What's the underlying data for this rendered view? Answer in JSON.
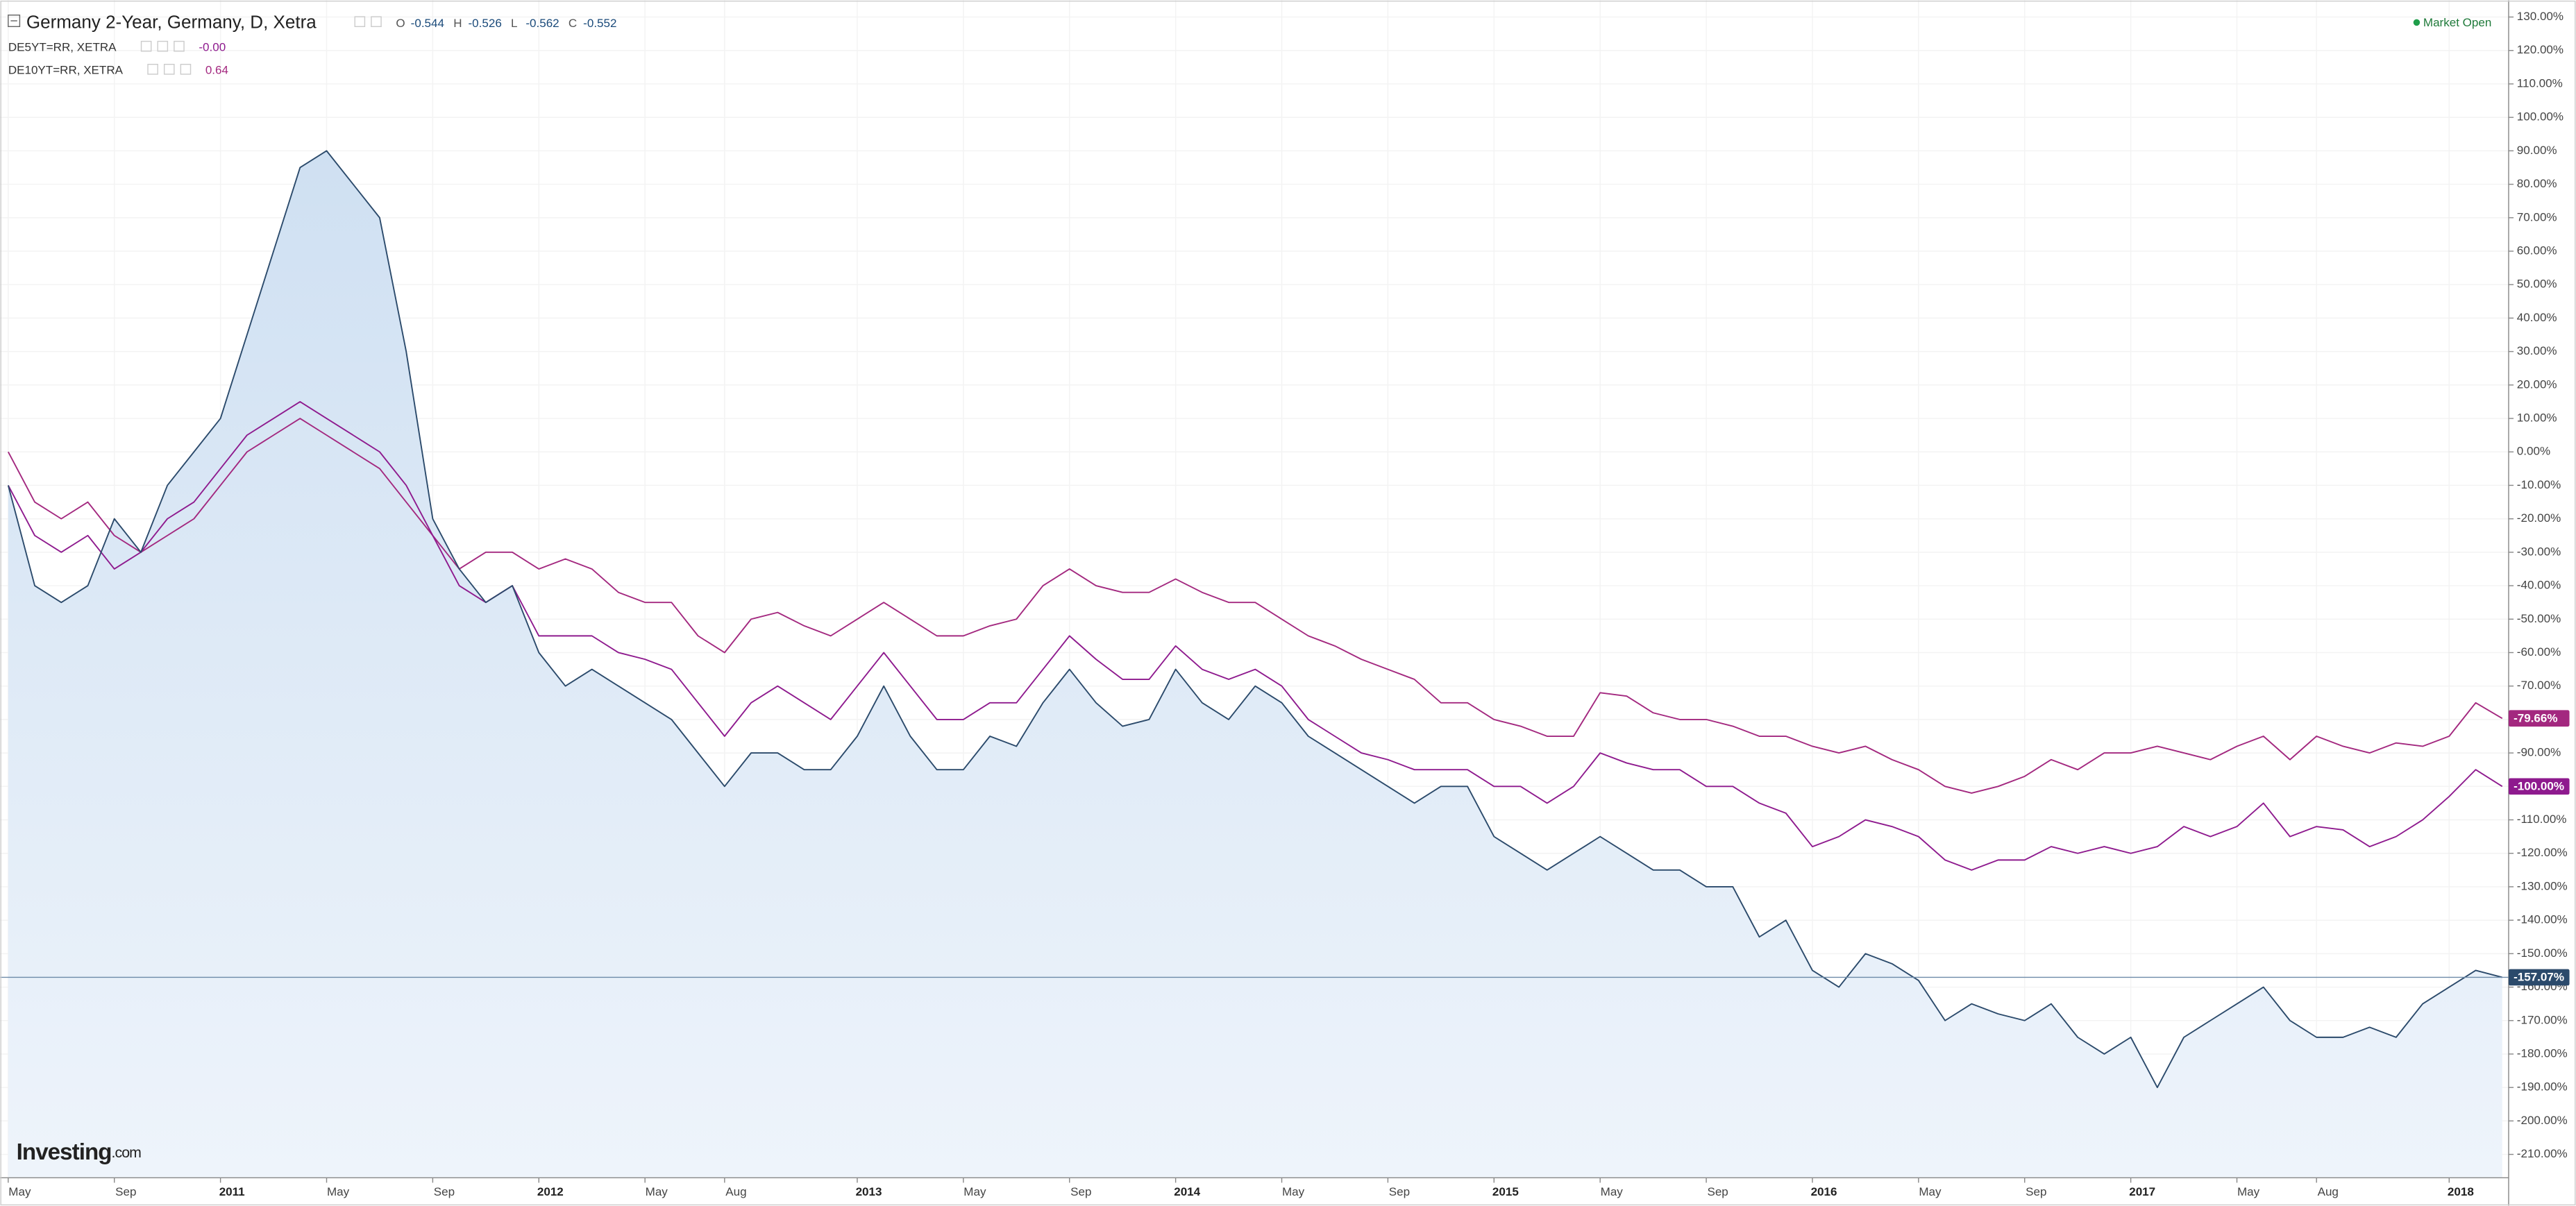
{
  "header": {
    "ohlc": [
      {
        "key": "O",
        "value": "-0.544"
      },
      {
        "key": "H",
        "value": "-0.526"
      },
      {
        "key": "L",
        "value": "-0.562"
      },
      {
        "key": "C",
        "value": "-0.552"
      }
    ]
  },
  "status": "Market Open",
  "logo": {
    "brand": "Investing",
    "suffix": ".com"
  },
  "chart_data": {
    "type": "line",
    "grid": true,
    "categories": [
      "May",
      null,
      null,
      null,
      "Sep",
      null,
      null,
      null,
      "2011",
      null,
      null,
      null,
      "May",
      null,
      null,
      null,
      "Sep",
      null,
      null,
      null,
      "2012",
      null,
      null,
      null,
      "May",
      null,
      null,
      "Aug",
      null,
      null,
      null,
      null,
      "2013",
      null,
      null,
      null,
      "May",
      null,
      null,
      null,
      "Sep",
      null,
      null,
      null,
      "2014",
      null,
      null,
      null,
      "May",
      null,
      null,
      null,
      "Sep",
      null,
      null,
      null,
      "2015",
      null,
      null,
      null,
      "May",
      null,
      null,
      null,
      "Sep",
      null,
      null,
      null,
      "2016",
      null,
      null,
      null,
      "May",
      null,
      null,
      null,
      "Sep",
      null,
      null,
      null,
      "2017",
      null,
      null,
      null,
      "May",
      null,
      null,
      "Aug",
      null,
      null,
      null,
      null,
      "2018",
      null,
      null
    ],
    "ylim": [
      -217,
      135
    ],
    "yticks": [
      {
        "value": 130,
        "label": "130.00%"
      },
      {
        "value": 120,
        "label": "120.00%"
      },
      {
        "value": 110,
        "label": "110.00%"
      },
      {
        "value": 100,
        "label": "100.00%"
      },
      {
        "value": 90,
        "label": "90.00%"
      },
      {
        "value": 80,
        "label": "80.00%"
      },
      {
        "value": 70,
        "label": "70.00%"
      },
      {
        "value": 60,
        "label": "60.00%"
      },
      {
        "value": 50,
        "label": "50.00%"
      },
      {
        "value": 40,
        "label": "40.00%"
      },
      {
        "value": 30,
        "label": "30.00%"
      },
      {
        "value": 20,
        "label": "20.00%"
      },
      {
        "value": 10,
        "label": "10.00%"
      },
      {
        "value": 0,
        "label": "0.00%"
      },
      {
        "value": -10,
        "label": "-10.00%"
      },
      {
        "value": -20,
        "label": "-20.00%"
      },
      {
        "value": -30,
        "label": "-30.00%"
      },
      {
        "value": -40,
        "label": "-40.00%"
      },
      {
        "value": -50,
        "label": "-50.00%"
      },
      {
        "value": -60,
        "label": "-60.00%"
      },
      {
        "value": -70,
        "label": "-70.00%"
      },
      {
        "value": -80,
        "label": "-80.00%"
      },
      {
        "value": -90,
        "label": "-90.00%"
      },
      {
        "value": -100,
        "label": "-100.00%"
      },
      {
        "value": -110,
        "label": "-110.00%"
      },
      {
        "value": -120,
        "label": "-120.00%"
      },
      {
        "value": -130,
        "label": "-130.00%"
      },
      {
        "value": -140,
        "label": "-140.00%"
      },
      {
        "value": -150,
        "label": "-150.00%"
      },
      {
        "value": -160,
        "label": "-160.00%"
      },
      {
        "value": -170,
        "label": "-170.00%"
      },
      {
        "value": -180,
        "label": "-180.00%"
      },
      {
        "value": -190,
        "label": "-190.00%"
      },
      {
        "value": -200,
        "label": "-200.00%"
      },
      {
        "value": -210,
        "label": "-210.00%"
      }
    ],
    "series": [
      {
        "name": "Germany 2-Year, Germany, D, Xetra",
        "color": "#2b4a6b",
        "area": true,
        "end_label": "-157.07%",
        "values": [
          -10,
          -40,
          -45,
          -40,
          -20,
          -30,
          -10,
          0,
          10,
          35,
          60,
          85,
          90,
          80,
          70,
          30,
          -20,
          -35,
          -45,
          -40,
          -60,
          -70,
          -65,
          -70,
          -75,
          -80,
          -90,
          -100,
          -90,
          -90,
          -95,
          -95,
          -85,
          -70,
          -85,
          -95,
          -95,
          -85,
          -88,
          -75,
          -65,
          -75,
          -82,
          -80,
          -65,
          -75,
          -80,
          -70,
          -75,
          -85,
          -90,
          -95,
          -100,
          -105,
          -100,
          -100,
          -115,
          -120,
          -125,
          -120,
          -115,
          -120,
          -125,
          -125,
          -130,
          -130,
          -145,
          -140,
          -155,
          -160,
          -150,
          -153,
          -158,
          -170,
          -165,
          -168,
          -170,
          -165,
          -175,
          -180,
          -175,
          -190,
          -175,
          -170,
          -165,
          -160,
          -170,
          -175,
          -175,
          -172,
          -175,
          -165,
          -160,
          -155,
          -157.07
        ]
      },
      {
        "name": "DE5YT=RR, XETRA",
        "color": "#8e1a8e",
        "legend_value": "-0.00",
        "end_label": "-100.00%",
        "values": [
          -10,
          -25,
          -30,
          -25,
          -35,
          -30,
          -20,
          -15,
          -5,
          5,
          10,
          15,
          10,
          5,
          0,
          -10,
          -25,
          -40,
          -45,
          -40,
          -55,
          -55,
          -55,
          -60,
          -62,
          -65,
          -75,
          -85,
          -75,
          -70,
          -75,
          -80,
          -70,
          -60,
          -70,
          -80,
          -80,
          -75,
          -75,
          -65,
          -55,
          -62,
          -68,
          -68,
          -58,
          -65,
          -68,
          -65,
          -70,
          -80,
          -85,
          -90,
          -92,
          -95,
          -95,
          -95,
          -100,
          -100,
          -105,
          -100,
          -90,
          -93,
          -95,
          -95,
          -100,
          -100,
          -105,
          -108,
          -118,
          -115,
          -110,
          -112,
          -115,
          -122,
          -125,
          -122,
          -122,
          -118,
          -120,
          -118,
          -120,
          -118,
          -112,
          -115,
          -112,
          -105,
          -115,
          -112,
          -113,
          -118,
          -115,
          -110,
          -103,
          -95,
          -100
        ]
      },
      {
        "name": "DE10YT=RR, XETRA",
        "color": "#a3287f",
        "legend_value": "0.64",
        "end_label": "-79.66%",
        "values": [
          0,
          -15,
          -20,
          -15,
          -25,
          -30,
          -25,
          -20,
          -10,
          0,
          5,
          10,
          5,
          0,
          -5,
          -15,
          -25,
          -35,
          -30,
          -30,
          -35,
          -32,
          -35,
          -42,
          -45,
          -45,
          -55,
          -60,
          -50,
          -48,
          -52,
          -55,
          -50,
          -45,
          -50,
          -55,
          -55,
          -52,
          -50,
          -40,
          -35,
          -40,
          -42,
          -42,
          -38,
          -42,
          -45,
          -45,
          -50,
          -55,
          -58,
          -62,
          -65,
          -68,
          -75,
          -75,
          -80,
          -82,
          -85,
          -85,
          -72,
          -73,
          -78,
          -80,
          -80,
          -82,
          -85,
          -85,
          -88,
          -90,
          -88,
          -92,
          -95,
          -100,
          -102,
          -100,
          -97,
          -92,
          -95,
          -90,
          -90,
          -88,
          -90,
          -92,
          -88,
          -85,
          -92,
          -85,
          -88,
          -90,
          -87,
          -88,
          -85,
          -75,
          -79.66
        ]
      }
    ]
  }
}
